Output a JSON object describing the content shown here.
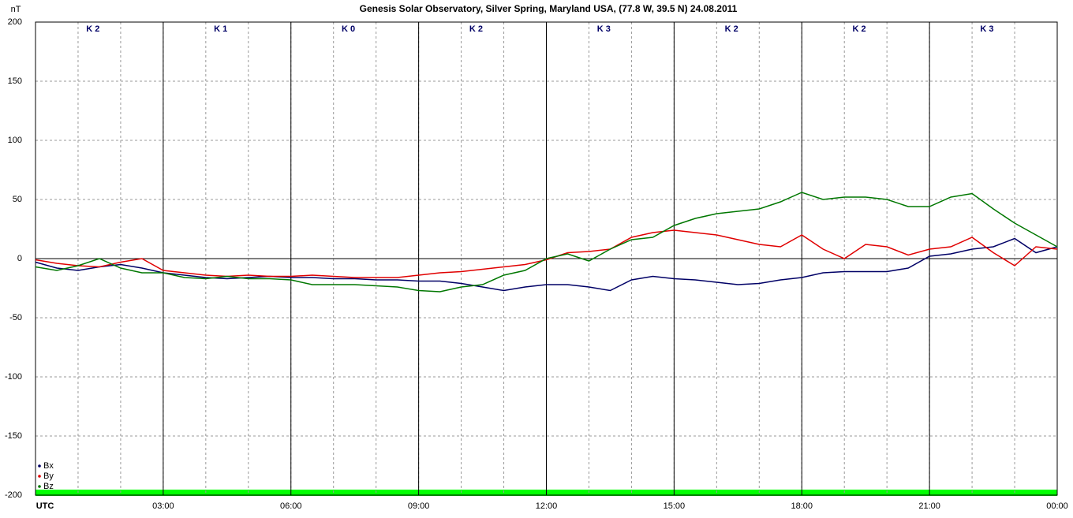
{
  "chart_data": {
    "type": "line",
    "title": "Genesis Solar Observatory, Silver Spring, Maryland USA, (77.8 W, 39.5 N)  24.08.2011",
    "y_label": "nT",
    "k_index": [
      "K 2",
      "K 1",
      "K 0",
      "K 2",
      "K 3",
      "K 2",
      "K 2",
      "K 3"
    ],
    "xlim": [
      0,
      24
    ],
    "xticks": [
      {
        "value": 0,
        "label": "UTC"
      },
      {
        "value": 3,
        "label": "03:00"
      },
      {
        "value": 6,
        "label": "06:00"
      },
      {
        "value": 9,
        "label": "09:00"
      },
      {
        "value": 12,
        "label": "12:00"
      },
      {
        "value": 15,
        "label": "15:00"
      },
      {
        "value": 18,
        "label": "18:00"
      },
      {
        "value": 21,
        "label": "21:00"
      },
      {
        "value": 24,
        "label": "00:00"
      }
    ],
    "ylim": [
      -200,
      200
    ],
    "yticks": [
      -200,
      -150,
      -100,
      -50,
      0,
      50,
      100,
      150,
      200
    ],
    "grid": true,
    "x": [
      0,
      0.5,
      1,
      1.5,
      2,
      2.5,
      3,
      3.5,
      4,
      4.5,
      5,
      5.5,
      6,
      6.5,
      7,
      7.5,
      8,
      8.5,
      9,
      9.5,
      10,
      10.5,
      11,
      11.5,
      12,
      12.5,
      13,
      13.5,
      14,
      14.5,
      15,
      15.5,
      16,
      16.5,
      17,
      17.5,
      18,
      18.5,
      19,
      19.5,
      20,
      20.5,
      21,
      21.5,
      22,
      22.5,
      23,
      23.5,
      24
    ],
    "series": [
      {
        "name": "Bx",
        "color": "#000066",
        "values": [
          -3,
          -8,
          -10,
          -7,
          -5,
          -8,
          -12,
          -14,
          -16,
          -17,
          -16,
          -15,
          -16,
          -16,
          -17,
          -17,
          -18,
          -18,
          -19,
          -19,
          -21,
          -24,
          -27,
          -24,
          -22,
          -22,
          -24,
          -27,
          -18,
          -15,
          -17,
          -18,
          -20,
          -22,
          -21,
          -18,
          -16,
          -12,
          -11,
          -11,
          -11,
          -8,
          2,
          4,
          8,
          10,
          17,
          5,
          10
        ]
      },
      {
        "name": "By",
        "color": "#e00000",
        "values": [
          -1,
          -4,
          -6,
          -7,
          -3,
          0,
          -10,
          -12,
          -14,
          -15,
          -14,
          -15,
          -15,
          -14,
          -15,
          -16,
          -16,
          -16,
          -14,
          -12,
          -11,
          -9,
          -7,
          -5,
          -1,
          5,
          6,
          8,
          18,
          22,
          24,
          22,
          20,
          16,
          12,
          10,
          20,
          8,
          0,
          12,
          10,
          3,
          8,
          10,
          18,
          5,
          -6,
          10,
          8
        ]
      },
      {
        "name": "Bz",
        "color": "#007700",
        "values": [
          -7,
          -10,
          -6,
          0,
          -8,
          -12,
          -12,
          -16,
          -17,
          -15,
          -17,
          -17,
          -18,
          -22,
          -22,
          -22,
          -23,
          -24,
          -27,
          -28,
          -24,
          -22,
          -14,
          -10,
          0,
          4,
          -2,
          8,
          16,
          18,
          28,
          34,
          38,
          40,
          42,
          48,
          56,
          50,
          52,
          52,
          50,
          44,
          44,
          52,
          55,
          42,
          30,
          20,
          10
        ]
      }
    ]
  }
}
